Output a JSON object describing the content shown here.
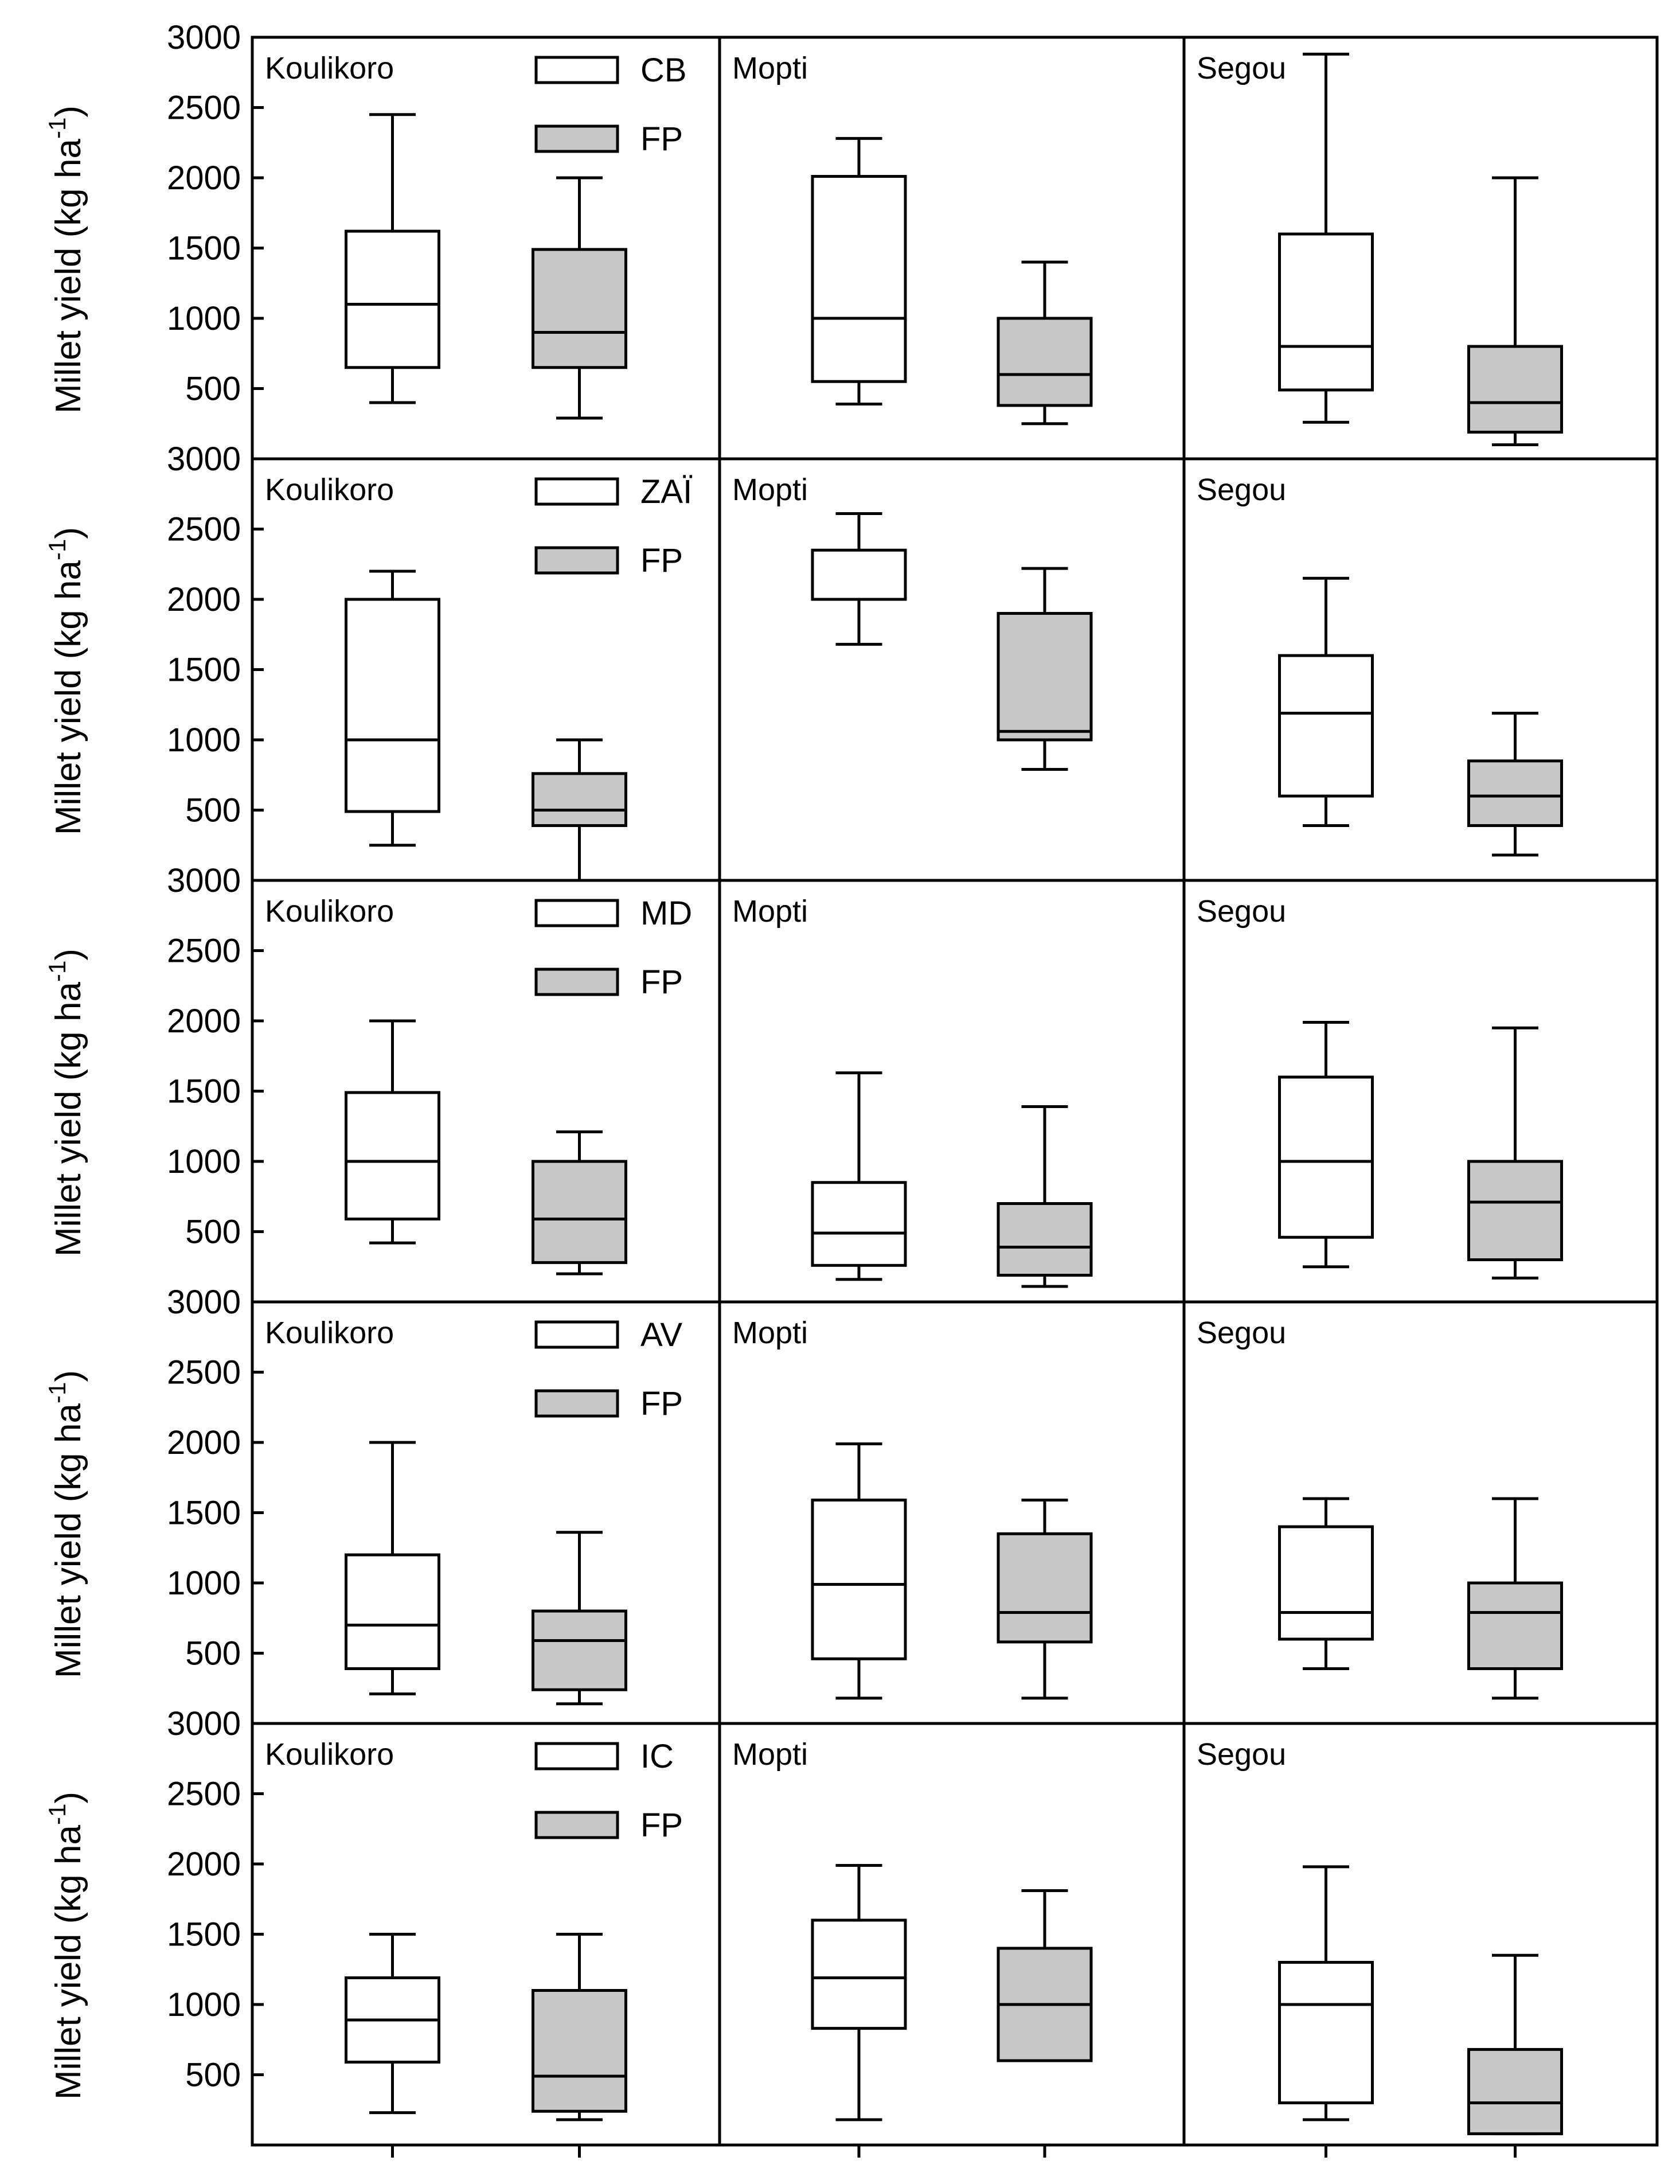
{
  "chart_data": {
    "type": "boxplot",
    "ylabel": "Millet yield (kg ha",
    "ylabel_superscript": "-1",
    "ylabel_close": ")",
    "ylim": [
      0,
      3000
    ],
    "yticks": [
      500,
      1000,
      1500,
      2000,
      2500,
      3000
    ],
    "yticks_labels": [
      "500",
      "1000",
      "1500",
      "2000",
      "2500",
      "3000"
    ],
    "colors": {
      "treatment": "#ffffff",
      "fp": "#c8c8c8",
      "line": "#000000"
    },
    "rows": [
      {
        "treatment": "CB",
        "legend": [
          "CB",
          "FP"
        ],
        "panels": [
          {
            "region": "Koulikoro",
            "boxes": [
              {
                "min": 400,
                "q1": 650,
                "median": 1100,
                "q3": 1620,
                "max": 2450
              },
              {
                "min": 290,
                "q1": 650,
                "median": 900,
                "q3": 1490,
                "max": 2000
              }
            ]
          },
          {
            "region": "Mopti",
            "boxes": [
              {
                "min": 390,
                "q1": 550,
                "median": 1000,
                "q3": 2010,
                "max": 2280
              },
              {
                "min": 250,
                "q1": 380,
                "median": 600,
                "q3": 1000,
                "max": 1400
              }
            ]
          },
          {
            "region": "Segou",
            "boxes": [
              {
                "min": 260,
                "q1": 490,
                "median": 800,
                "q3": 1600,
                "max": 2880
              },
              {
                "min": 100,
                "q1": 190,
                "median": 400,
                "q3": 800,
                "max": 2000
              }
            ]
          }
        ]
      },
      {
        "treatment": "ZAÏ",
        "legend": [
          "ZAÏ",
          "FP"
        ],
        "panels": [
          {
            "region": "Koulikoro",
            "boxes": [
              {
                "min": 250,
                "q1": 490,
                "median": 1000,
                "q3": 2000,
                "max": 2200
              },
              {
                "min": 0,
                "q1": 390,
                "median": 500,
                "q3": 760,
                "max": 1000
              }
            ]
          },
          {
            "region": "Mopti",
            "boxes": [
              {
                "min": 1680,
                "q1": 2000,
                "median": 2000,
                "q3": 2350,
                "max": 2610
              },
              {
                "min": 790,
                "q1": 1000,
                "median": 1060,
                "q3": 1900,
                "max": 2220
              }
            ]
          },
          {
            "region": "Segou",
            "boxes": [
              {
                "min": 390,
                "q1": 600,
                "median": 1190,
                "q3": 1600,
                "max": 2150
              },
              {
                "min": 180,
                "q1": 390,
                "median": 600,
                "q3": 850,
                "max": 1190
              }
            ]
          }
        ]
      },
      {
        "treatment": "MD",
        "legend": [
          "MD",
          "FP"
        ],
        "panels": [
          {
            "region": "Koulikoro",
            "boxes": [
              {
                "min": 420,
                "q1": 590,
                "median": 1000,
                "q3": 1490,
                "max": 2000
              },
              {
                "min": 200,
                "q1": 280,
                "median": 590,
                "q3": 1000,
                "max": 1210
              }
            ]
          },
          {
            "region": "Mopti",
            "boxes": [
              {
                "min": 160,
                "q1": 260,
                "median": 490,
                "q3": 850,
                "max": 1630
              },
              {
                "min": 110,
                "q1": 190,
                "median": 390,
                "q3": 700,
                "max": 1390
              }
            ]
          },
          {
            "region": "Segou",
            "boxes": [
              {
                "min": 250,
                "q1": 460,
                "median": 1000,
                "q3": 1600,
                "max": 1990
              },
              {
                "min": 170,
                "q1": 300,
                "median": 710,
                "q3": 1000,
                "max": 1950
              }
            ]
          }
        ]
      },
      {
        "treatment": "AV",
        "legend": [
          "AV",
          "FP"
        ],
        "panels": [
          {
            "region": "Koulikoro",
            "boxes": [
              {
                "min": 210,
                "q1": 390,
                "median": 700,
                "q3": 1200,
                "max": 2000
              },
              {
                "min": 140,
                "q1": 240,
                "median": 590,
                "q3": 800,
                "max": 1360
              }
            ]
          },
          {
            "region": "Mopti",
            "boxes": [
              {
                "min": 180,
                "q1": 460,
                "median": 990,
                "q3": 1590,
                "max": 1990
              },
              {
                "min": 180,
                "q1": 580,
                "median": 790,
                "q3": 1350,
                "max": 1590
              }
            ]
          },
          {
            "region": "Segou",
            "boxes": [
              {
                "min": 390,
                "q1": 600,
                "median": 790,
                "q3": 1400,
                "max": 1600
              },
              {
                "min": 180,
                "q1": 390,
                "median": 790,
                "q3": 1000,
                "max": 1600
              }
            ]
          }
        ]
      },
      {
        "treatment": "IC",
        "legend": [
          "IC",
          "FP"
        ],
        "panels": [
          {
            "region": "Koulikoro",
            "boxes": [
              {
                "min": 230,
                "q1": 590,
                "median": 890,
                "q3": 1190,
                "max": 1500
              },
              {
                "min": 180,
                "q1": 240,
                "median": 490,
                "q3": 1100,
                "max": 1500
              }
            ]
          },
          {
            "region": "Mopti",
            "boxes": [
              {
                "min": 180,
                "q1": 830,
                "median": 1190,
                "q3": 1600,
                "max": 1990
              },
              {
                "min": 600,
                "q1": 600,
                "median": 1000,
                "q3": 1400,
                "max": 1810
              }
            ]
          },
          {
            "region": "Segou",
            "boxes": [
              {
                "min": 180,
                "q1": 300,
                "median": 1000,
                "q3": 1300,
                "max": 1980
              },
              {
                "min": 80,
                "q1": 80,
                "median": 300,
                "q3": 680,
                "max": 1350
              }
            ]
          }
        ]
      }
    ]
  }
}
